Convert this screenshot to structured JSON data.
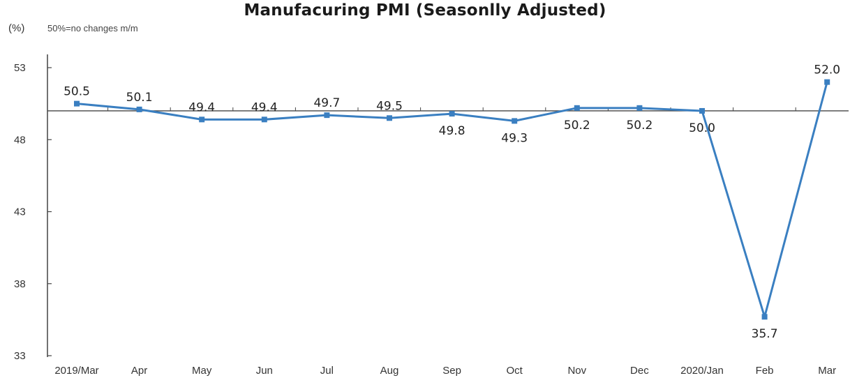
{
  "chart_data": {
    "type": "line",
    "title": "Manufacuring PMI (Seasonlly Adjusted)",
    "ylabel": "(%)",
    "note": "50%=no changes m/m",
    "xlabel": "",
    "categories": [
      "2019/Mar",
      "Apr",
      "May",
      "Jun",
      "Jul",
      "Aug",
      "Sep",
      "Oct",
      "Nov",
      "Dec",
      "2020/Jan",
      "Feb",
      "Mar"
    ],
    "series": [
      {
        "values": [
          50.5,
          50.1,
          49.4,
          49.4,
          49.7,
          49.5,
          49.8,
          49.3,
          50.2,
          50.2,
          50.0,
          35.7,
          52.0
        ],
        "value_labels": [
          "50.5",
          "50.1",
          "49.4",
          "49.4",
          "49.7",
          "49.5",
          "49.8",
          "49.3",
          "50.2",
          "50.2",
          "50.0",
          "35.7",
          "52.0"
        ],
        "label_positions": [
          "above",
          "above",
          "above",
          "above",
          "above",
          "above",
          "below",
          "below",
          "below",
          "below",
          "below",
          "below",
          "above"
        ]
      }
    ],
    "y_ticks": [
      33,
      38,
      43,
      48,
      53
    ],
    "y_tick_labels": [
      "33",
      "38",
      "43",
      "48",
      "53"
    ],
    "ylim": [
      33,
      54
    ],
    "reference_line": 50,
    "grid": false,
    "line_color": "#3a7fc1",
    "axis_color": "#444444"
  }
}
